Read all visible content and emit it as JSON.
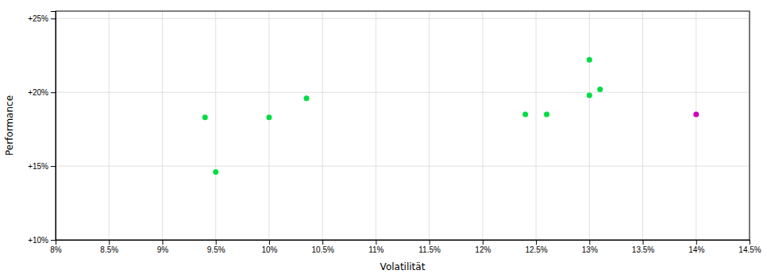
{
  "chart_data": {
    "type": "scatter",
    "xlabel": "Volatilität",
    "ylabel": "Performance",
    "xlim": [
      0.08,
      0.145
    ],
    "ylim": [
      0.1,
      0.255
    ],
    "xticks": [
      {
        "value": 0.08,
        "label": "8%"
      },
      {
        "value": 0.085,
        "label": "8.5%"
      },
      {
        "value": 0.09,
        "label": "9%"
      },
      {
        "value": 0.095,
        "label": "9.5%"
      },
      {
        "value": 0.1,
        "label": "10%"
      },
      {
        "value": 0.105,
        "label": "10.5%"
      },
      {
        "value": 0.11,
        "label": "11%"
      },
      {
        "value": 0.115,
        "label": "11.5%"
      },
      {
        "value": 0.12,
        "label": "12%"
      },
      {
        "value": 0.125,
        "label": "12.5%"
      },
      {
        "value": 0.13,
        "label": "13%"
      },
      {
        "value": 0.135,
        "label": "13.5%"
      },
      {
        "value": 0.14,
        "label": "14%"
      },
      {
        "value": 0.145,
        "label": "14.5%"
      }
    ],
    "yticks": [
      {
        "value": 0.1,
        "label": "+10%"
      },
      {
        "value": 0.15,
        "label": "+15%"
      },
      {
        "value": 0.2,
        "label": "+20%"
      },
      {
        "value": 0.25,
        "label": "+25%"
      }
    ],
    "grid": true,
    "series": [
      {
        "color": "#00dd44",
        "x": [
          0.094,
          0.095,
          0.1,
          0.1035,
          0.124,
          0.126,
          0.13,
          0.13,
          0.131
        ],
        "values": [
          0.183,
          0.146,
          0.183,
          0.196,
          0.185,
          0.185,
          0.222,
          0.198,
          0.202
        ]
      },
      {
        "color": "#cc00bb",
        "x": [
          0.14
        ],
        "values": [
          0.185
        ]
      }
    ]
  }
}
